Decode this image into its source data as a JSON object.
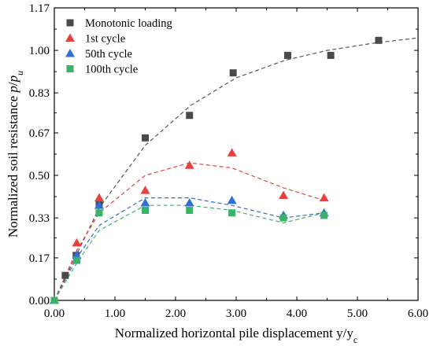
{
  "chart_data": {
    "type": "scatter",
    "xlabel_main": "Normalized horizontal pile displacement y/y",
    "xlabel_sub": "c",
    "ylabel_main": "Normalized soil resistance ",
    "ylabel_p": "p",
    "ylabel_sep": "/",
    "ylabel_pu": "p",
    "ylabel_pu_sub": "u",
    "xlim": [
      0,
      6
    ],
    "ylim": [
      0,
      1.17
    ],
    "x_ticks": [
      0,
      1,
      2,
      3,
      4,
      5,
      6
    ],
    "x_tick_labels": [
      "0.00",
      "1.00",
      "2.00",
      "3.00",
      "4.00",
      "5.00",
      "6.00"
    ],
    "y_ticks": [
      0,
      0.17,
      0.33,
      0.5,
      0.67,
      0.83,
      1.0,
      1.17
    ],
    "y_tick_labels": [
      "0.00",
      "0.17",
      "0.33",
      "0.50",
      "0.67",
      "0.83",
      "1.00",
      "1.17"
    ],
    "legend_position": "top-left",
    "series": [
      {
        "name": "Monotonic loading",
        "marker": "square",
        "color": "#4a4a4a",
        "points": [
          [
            0,
            0
          ],
          [
            0.18,
            0.1
          ],
          [
            0.36,
            0.18
          ],
          [
            0.74,
            0.39
          ],
          [
            1.5,
            0.65
          ],
          [
            2.23,
            0.74
          ],
          [
            2.95,
            0.91
          ],
          [
            3.85,
            0.98
          ],
          [
            4.56,
            0.98
          ],
          [
            5.35,
            1.04
          ]
        ],
        "fit_color": "#555555",
        "fit": [
          [
            0,
            0
          ],
          [
            0.2,
            0.1
          ],
          [
            0.4,
            0.2
          ],
          [
            0.74,
            0.37
          ],
          [
            1.5,
            0.62
          ],
          [
            2.25,
            0.78
          ],
          [
            3.0,
            0.89
          ],
          [
            3.8,
            0.96
          ],
          [
            4.5,
            1.0
          ],
          [
            5.3,
            1.03
          ],
          [
            6.0,
            1.05
          ]
        ]
      },
      {
        "name": "1st cycle",
        "marker": "triangle",
        "color": "#e8403c",
        "points": [
          [
            0,
            0
          ],
          [
            0.37,
            0.23
          ],
          [
            0.74,
            0.41
          ],
          [
            1.5,
            0.44
          ],
          [
            2.23,
            0.54
          ],
          [
            2.93,
            0.59
          ],
          [
            3.78,
            0.42
          ],
          [
            4.45,
            0.41
          ]
        ],
        "fit_color": "#e8403c",
        "fit": [
          [
            0,
            0
          ],
          [
            0.37,
            0.2
          ],
          [
            0.74,
            0.35
          ],
          [
            1.5,
            0.5
          ],
          [
            2.23,
            0.55
          ],
          [
            2.93,
            0.53
          ],
          [
            3.78,
            0.45
          ],
          [
            4.45,
            0.4
          ]
        ]
      },
      {
        "name": "50th cycle",
        "marker": "triangle",
        "color": "#2d6fd6",
        "points": [
          [
            0,
            0
          ],
          [
            0.37,
            0.18
          ],
          [
            0.74,
            0.38
          ],
          [
            1.5,
            0.39
          ],
          [
            2.23,
            0.39
          ],
          [
            2.93,
            0.4
          ],
          [
            3.78,
            0.34
          ],
          [
            4.45,
            0.35
          ]
        ],
        "fit_color": "#2d6fd6",
        "fit": [
          [
            0,
            0
          ],
          [
            0.37,
            0.17
          ],
          [
            0.74,
            0.3
          ],
          [
            1.5,
            0.41
          ],
          [
            2.23,
            0.41
          ],
          [
            2.93,
            0.38
          ],
          [
            3.78,
            0.33
          ],
          [
            4.45,
            0.35
          ]
        ]
      },
      {
        "name": "100th cycle",
        "marker": "square",
        "color": "#3ab36a",
        "points": [
          [
            0,
            0
          ],
          [
            0.37,
            0.16
          ],
          [
            0.74,
            0.35
          ],
          [
            1.5,
            0.36
          ],
          [
            2.23,
            0.36
          ],
          [
            2.93,
            0.35
          ],
          [
            3.78,
            0.33
          ],
          [
            4.45,
            0.34
          ]
        ],
        "fit_color": "#3ab36a",
        "fit": [
          [
            0,
            0
          ],
          [
            0.37,
            0.15
          ],
          [
            0.74,
            0.28
          ],
          [
            1.5,
            0.38
          ],
          [
            2.23,
            0.38
          ],
          [
            2.93,
            0.36
          ],
          [
            3.78,
            0.31
          ],
          [
            4.45,
            0.35
          ]
        ]
      }
    ]
  }
}
